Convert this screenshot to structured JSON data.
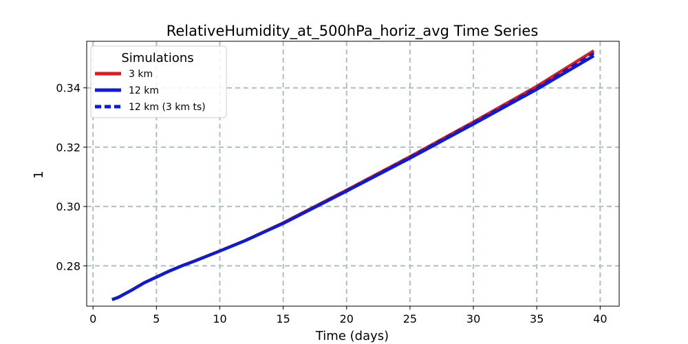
{
  "chart_data": {
    "type": "line",
    "title": "RelativeHumidity_at_500hPa_horiz_avg Time Series",
    "xlabel": "Time (days)",
    "ylabel": "1",
    "xlim": [
      -0.5,
      41.5
    ],
    "ylim": [
      0.2664,
      0.3557
    ],
    "xticks": [
      0,
      5,
      10,
      15,
      20,
      25,
      30,
      35,
      40
    ],
    "yticks": [
      0.28,
      0.3,
      0.32,
      0.34
    ],
    "ytick_labels": [
      "0.28",
      "0.30",
      "0.32",
      "0.34"
    ],
    "grid": true,
    "legend": {
      "title": "Simulations",
      "placement": "top-left"
    },
    "series": [
      {
        "name": "3 km",
        "color": "#e41a1c",
        "dash": "solid",
        "x": [
          1.5,
          2,
          3,
          4,
          5,
          6,
          7,
          8,
          10,
          12,
          15,
          20,
          25,
          30,
          35,
          39.5
        ],
        "y": [
          0.2686,
          0.2694,
          0.2717,
          0.2742,
          0.2762,
          0.2782,
          0.28,
          0.2816,
          0.285,
          0.2885,
          0.2945,
          0.3055,
          0.3168,
          0.3285,
          0.3405,
          0.3525
        ]
      },
      {
        "name": "12 km",
        "color": "#0b1bd6",
        "dash": "solid",
        "x": [
          1.5,
          2,
          3,
          4,
          5,
          6,
          7,
          8,
          10,
          12,
          15,
          20,
          25,
          30,
          35,
          39.5
        ],
        "y": [
          0.2686,
          0.2694,
          0.2717,
          0.2742,
          0.2762,
          0.2782,
          0.28,
          0.2816,
          0.285,
          0.2885,
          0.2943,
          0.3052,
          0.3163,
          0.3278,
          0.3395,
          0.3508
        ]
      },
      {
        "name": "12 km (3 km ts)",
        "color": "#0b1bd6",
        "dash": "dashed",
        "x": [
          1.5,
          2,
          3,
          4,
          5,
          6,
          7,
          8,
          10,
          12,
          15,
          20,
          25,
          30,
          35,
          39.5
        ],
        "y": [
          0.2686,
          0.2694,
          0.2717,
          0.2742,
          0.2762,
          0.2782,
          0.28,
          0.2816,
          0.285,
          0.2885,
          0.2944,
          0.3054,
          0.3166,
          0.3282,
          0.34,
          0.3517
        ]
      }
    ]
  }
}
